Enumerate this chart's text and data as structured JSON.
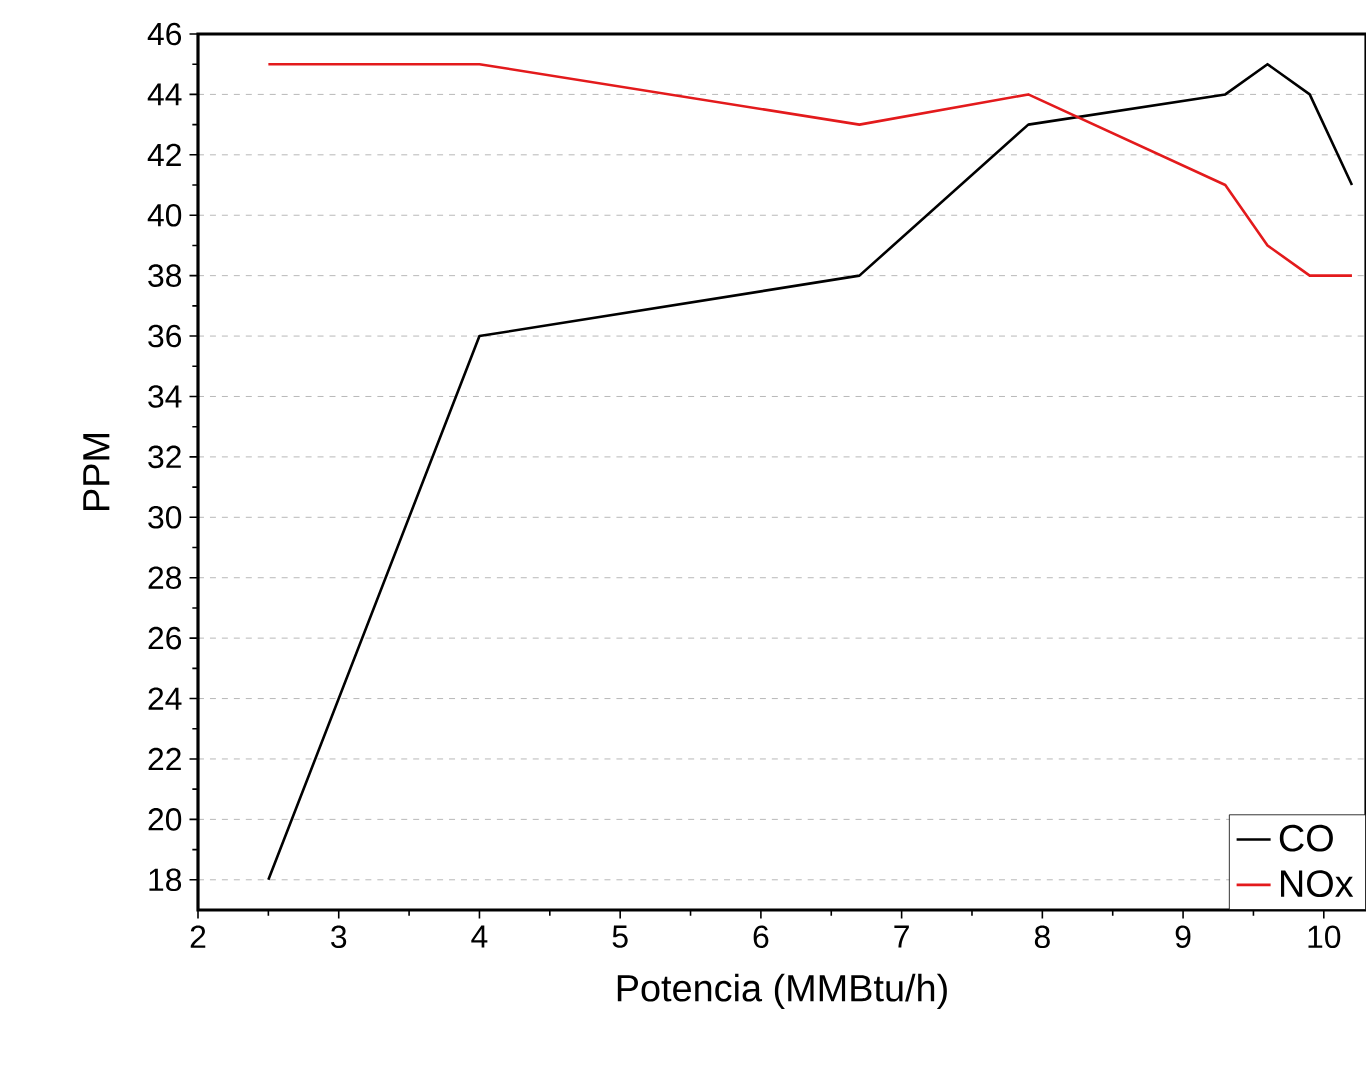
{
  "chart_data": {
    "type": "line",
    "xlabel": "Potencia (MMBtu/h)",
    "ylabel": "PPM",
    "xlim": [
      2,
      10.3
    ],
    "xticks": [
      2,
      3,
      4,
      5,
      6,
      7,
      8,
      9,
      10
    ],
    "ylim": [
      17,
      46
    ],
    "yticks": [
      18,
      20,
      22,
      24,
      26,
      28,
      30,
      32,
      34,
      36,
      38,
      40,
      42,
      44,
      46
    ],
    "grid": "y",
    "legend": "bottom right",
    "marker": "none",
    "line_style": "solid",
    "series": [
      {
        "name": "CO",
        "color": "#000000",
        "x": [
          2.5,
          4,
          6.7,
          7.9,
          9.3,
          9.6,
          9.9,
          10.2
        ],
        "values": [
          18,
          36,
          38,
          43,
          44,
          45,
          44,
          41
        ]
      },
      {
        "name": "NOx",
        "color": "#e31a1c",
        "x": [
          2.5,
          4,
          6.7,
          7.9,
          9.3,
          9.6,
          9.9,
          10.2
        ],
        "values": [
          45,
          45,
          43,
          44,
          41,
          39,
          38,
          38
        ]
      }
    ]
  }
}
